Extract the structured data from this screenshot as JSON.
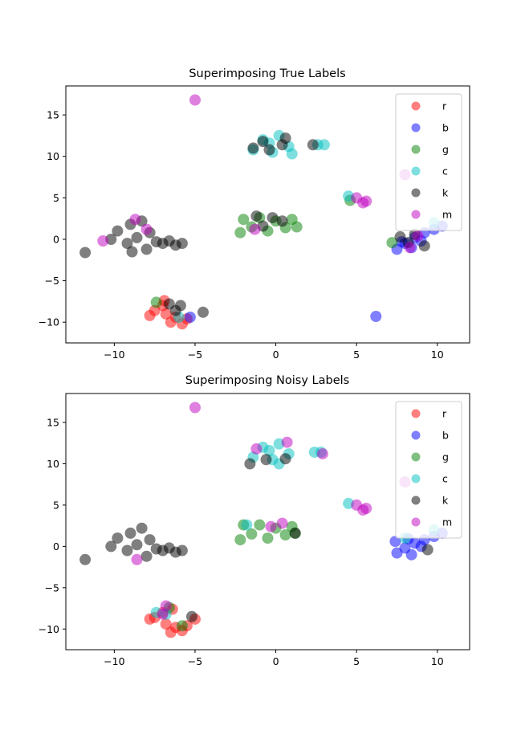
{
  "chart_data": [
    {
      "type": "scatter",
      "title": "Superimposing True Labels",
      "xlabel": "",
      "ylabel": "",
      "xlim": [
        -13,
        12
      ],
      "ylim": [
        -12.5,
        18.5
      ],
      "xticks": [
        -10,
        -5,
        0,
        5,
        10
      ],
      "xtick_labels": [
        "−10",
        "−5",
        "0",
        "5",
        "10"
      ],
      "yticks": [
        -10,
        -5,
        0,
        5,
        10,
        15
      ],
      "ytick_labels": [
        "−10",
        "−5",
        "0",
        "5",
        "10",
        "15"
      ],
      "grid": false,
      "legend_position": "top-right",
      "series": [
        {
          "name": "r",
          "color": "#ff0000",
          "points": [
            [
              -7.5,
              -8.6
            ],
            [
              -7.0,
              -8.0
            ],
            [
              -6.8,
              -9.0
            ],
            [
              -6.2,
              -9.4
            ],
            [
              -5.8,
              -10.2
            ],
            [
              -6.5,
              -10.0
            ],
            [
              -7.8,
              -9.2
            ],
            [
              -5.5,
              -9.6
            ],
            [
              -6.9,
              -7.4
            ]
          ]
        },
        {
          "name": "b",
          "color": "#0000ff",
          "points": [
            [
              7.5,
              -1.2
            ],
            [
              8.0,
              -0.5
            ],
            [
              8.6,
              0.2
            ],
            [
              9.2,
              0.8
            ],
            [
              9.8,
              1.2
            ],
            [
              10.3,
              1.6
            ],
            [
              8.4,
              -1.0
            ],
            [
              9.0,
              -0.2
            ],
            [
              7.8,
              -0.3
            ],
            [
              6.2,
              -9.3
            ],
            [
              -5.3,
              -9.4
            ]
          ]
        },
        {
          "name": "g",
          "color": "#008000",
          "points": [
            [
              -2.2,
              0.8
            ],
            [
              -2.0,
              2.4
            ],
            [
              -1.5,
              1.5
            ],
            [
              -1.0,
              2.6
            ],
            [
              -0.5,
              1.0
            ],
            [
              0.0,
              2.2
            ],
            [
              0.6,
              1.4
            ],
            [
              1.0,
              2.4
            ],
            [
              1.3,
              1.5
            ],
            [
              -7.4,
              -7.6
            ],
            [
              4.6,
              4.7
            ],
            [
              7.2,
              -0.4
            ]
          ]
        },
        {
          "name": "c",
          "color": "#00bfbf",
          "points": [
            [
              -1.4,
              10.8
            ],
            [
              -0.8,
              12.0
            ],
            [
              -0.2,
              10.5
            ],
            [
              0.2,
              12.5
            ],
            [
              0.8,
              11.2
            ],
            [
              1.0,
              10.3
            ],
            [
              -0.4,
              11.6
            ],
            [
              2.6,
              11.4
            ],
            [
              3.0,
              11.4
            ],
            [
              4.5,
              5.2
            ],
            [
              -6.0,
              -9.4
            ],
            [
              9.8,
              2.0
            ]
          ]
        },
        {
          "name": "k",
          "color": "#000000",
          "points": [
            [
              -11.8,
              -1.6
            ],
            [
              -10.2,
              0.0
            ],
            [
              -9.8,
              1.0
            ],
            [
              -9.2,
              -0.5
            ],
            [
              -9.0,
              1.8
            ],
            [
              -8.6,
              0.2
            ],
            [
              -8.3,
              2.2
            ],
            [
              -8.0,
              -1.2
            ],
            [
              -7.8,
              0.8
            ],
            [
              -7.4,
              -0.3
            ],
            [
              -7.0,
              -0.5
            ],
            [
              -6.6,
              -0.2
            ],
            [
              -6.2,
              -0.7
            ],
            [
              -5.8,
              -0.5
            ],
            [
              -8.9,
              -1.5
            ],
            [
              -1.4,
              11.0
            ],
            [
              -0.8,
              11.8
            ],
            [
              -0.4,
              10.8
            ],
            [
              0.4,
              11.4
            ],
            [
              0.6,
              12.2
            ],
            [
              2.3,
              11.4
            ],
            [
              -1.2,
              2.8
            ],
            [
              -0.8,
              1.6
            ],
            [
              -0.2,
              2.6
            ],
            [
              0.4,
              2.2
            ],
            [
              -6.6,
              -7.8
            ],
            [
              -6.2,
              -8.6
            ],
            [
              -5.9,
              -8.0
            ],
            [
              -4.5,
              -8.8
            ],
            [
              8.2,
              -0.4
            ],
            [
              8.6,
              0.6
            ],
            [
              9.2,
              -0.8
            ],
            [
              7.7,
              0.3
            ]
          ]
        },
        {
          "name": "m",
          "color": "#bf00bf",
          "points": [
            [
              -5.0,
              16.8
            ],
            [
              -10.7,
              -0.2
            ],
            [
              -8.7,
              2.4
            ],
            [
              -8.0,
              1.2
            ],
            [
              -1.3,
              1.2
            ],
            [
              5.0,
              5.0
            ],
            [
              5.4,
              4.4
            ],
            [
              5.6,
              4.6
            ],
            [
              8.0,
              7.8
            ],
            [
              8.3,
              -1.0
            ],
            [
              8.8,
              0.4
            ]
          ]
        }
      ]
    },
    {
      "type": "scatter",
      "title": "Superimposing Noisy Labels",
      "xlabel": "",
      "ylabel": "",
      "xlim": [
        -13,
        12
      ],
      "ylim": [
        -12.5,
        18.5
      ],
      "xticks": [
        -10,
        -5,
        0,
        5,
        10
      ],
      "xtick_labels": [
        "−10",
        "−5",
        "0",
        "5",
        "10"
      ],
      "yticks": [
        -10,
        -5,
        0,
        5,
        10,
        15
      ],
      "ytick_labels": [
        "−10",
        "−5",
        "0",
        "5",
        "10",
        "15"
      ],
      "grid": false,
      "legend_position": "top-right",
      "series": [
        {
          "name": "r",
          "color": "#ff0000",
          "points": [
            [
              -7.5,
              -8.6
            ],
            [
              -7.0,
              -8.0
            ],
            [
              -6.8,
              -9.4
            ],
            [
              -6.2,
              -9.8
            ],
            [
              -5.8,
              -10.2
            ],
            [
              -6.5,
              -10.4
            ],
            [
              -7.8,
              -8.8
            ],
            [
              -5.5,
              -9.6
            ],
            [
              -5.0,
              -8.8
            ],
            [
              -6.4,
              -7.6
            ]
          ]
        },
        {
          "name": "b",
          "color": "#0000ff",
          "points": [
            [
              7.5,
              -0.8
            ],
            [
              8.0,
              -0.2
            ],
            [
              8.6,
              0.4
            ],
            [
              9.2,
              0.8
            ],
            [
              9.8,
              1.2
            ],
            [
              10.3,
              1.6
            ],
            [
              8.4,
              -1.0
            ],
            [
              9.0,
              0.0
            ],
            [
              7.4,
              0.6
            ],
            [
              8.2,
              0.9
            ]
          ]
        },
        {
          "name": "g",
          "color": "#008000",
          "points": [
            [
              -2.2,
              0.8
            ],
            [
              -2.0,
              2.6
            ],
            [
              -1.5,
              1.5
            ],
            [
              -1.0,
              2.6
            ],
            [
              -0.5,
              1.0
            ],
            [
              0.0,
              2.2
            ],
            [
              0.6,
              1.4
            ],
            [
              1.0,
              2.4
            ],
            [
              1.2,
              1.6
            ],
            [
              -5.8,
              -9.6
            ],
            [
              -6.6,
              -7.4
            ]
          ]
        },
        {
          "name": "c",
          "color": "#00bfbf",
          "points": [
            [
              -1.4,
              10.8
            ],
            [
              -0.8,
              12.0
            ],
            [
              -0.2,
              10.5
            ],
            [
              0.2,
              12.4
            ],
            [
              0.8,
              11.2
            ],
            [
              0.2,
              10.0
            ],
            [
              -0.4,
              11.6
            ],
            [
              2.4,
              11.4
            ],
            [
              2.8,
              11.4
            ],
            [
              4.5,
              5.2
            ],
            [
              -7.4,
              -8.0
            ],
            [
              -6.8,
              -8.2
            ],
            [
              8.0,
              1.0
            ],
            [
              9.8,
              2.0
            ],
            [
              -1.8,
              2.6
            ]
          ]
        },
        {
          "name": "k",
          "color": "#000000",
          "points": [
            [
              -11.8,
              -1.6
            ],
            [
              -10.2,
              0.0
            ],
            [
              -9.8,
              1.0
            ],
            [
              -9.2,
              -0.5
            ],
            [
              -9.0,
              1.6
            ],
            [
              -8.6,
              0.2
            ],
            [
              -8.3,
              2.2
            ],
            [
              -8.0,
              -1.2
            ],
            [
              -7.8,
              0.8
            ],
            [
              -7.4,
              -0.3
            ],
            [
              -7.0,
              -0.5
            ],
            [
              -6.6,
              -0.2
            ],
            [
              -6.2,
              -0.7
            ],
            [
              -5.8,
              -0.5
            ],
            [
              -1.6,
              10.0
            ],
            [
              -0.6,
              10.5
            ],
            [
              0.6,
              10.6
            ],
            [
              1.2,
              1.6
            ],
            [
              -5.2,
              -8.5
            ],
            [
              9.4,
              -0.4
            ]
          ]
        },
        {
          "name": "m",
          "color": "#bf00bf",
          "points": [
            [
              -5.0,
              16.8
            ],
            [
              -1.2,
              11.8
            ],
            [
              0.7,
              12.6
            ],
            [
              2.9,
              11.2
            ],
            [
              5.0,
              5.0
            ],
            [
              5.4,
              4.4
            ],
            [
              5.6,
              4.6
            ],
            [
              8.0,
              7.8
            ],
            [
              -8.6,
              -1.6
            ],
            [
              -6.8,
              -7.2
            ],
            [
              -7.0,
              -8.2
            ],
            [
              0.4,
              2.8
            ],
            [
              -0.3,
              2.4
            ]
          ]
        }
      ]
    }
  ]
}
